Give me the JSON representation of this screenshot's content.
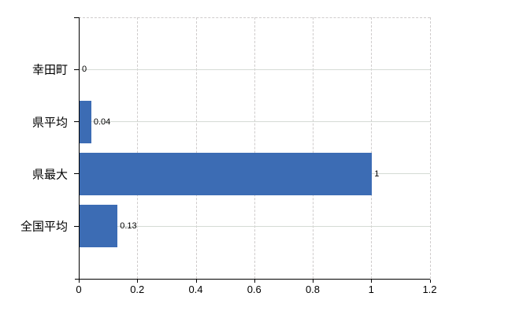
{
  "chart_data": {
    "type": "bar",
    "orientation": "horizontal",
    "title": "",
    "xlabel": "",
    "ylabel": "",
    "categories": [
      "幸田町",
      "県平均",
      "県最大",
      "全国平均"
    ],
    "values": [
      0,
      0.04,
      1,
      0.13
    ],
    "value_labels": [
      "0",
      "0.04",
      "1",
      "0.13"
    ],
    "xlim": [
      0,
      1.2
    ],
    "x_ticks": [
      0,
      0.2,
      0.4,
      0.6,
      0.8,
      1,
      1.2
    ],
    "x_tick_labels": [
      "0",
      "0.2",
      "0.4",
      "0.6",
      "0.8",
      "1",
      "1.2"
    ],
    "grid": true,
    "legend": false,
    "colors": {
      "bar": "#3c6cb4",
      "axis": "#000000",
      "horizontal_gridline": "#d5dbd5",
      "vertical_gridline": "#cfcccc",
      "plot_border_dashed": "#cfcccc",
      "label_text": "#000000",
      "background": "#ffffff"
    }
  }
}
